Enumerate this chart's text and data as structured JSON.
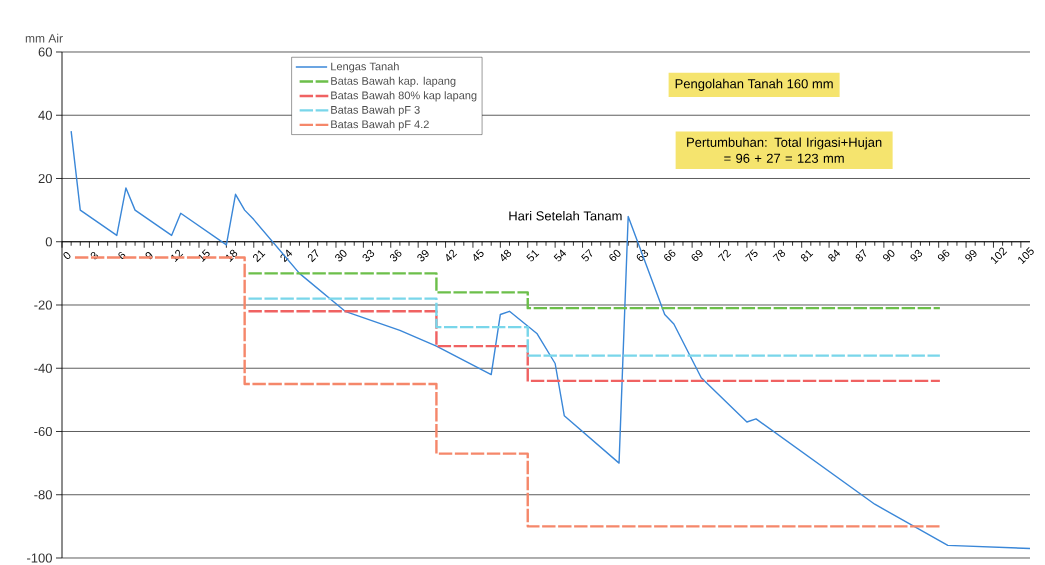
{
  "chart_data": {
    "type": "line",
    "xlabel": "Hari Setelah Tanam",
    "ylabel": "mm Air",
    "xlim": [
      0,
      106
    ],
    "xticks": [
      0,
      3,
      6,
      9,
      12,
      15,
      18,
      21,
      24,
      27,
      30,
      33,
      36,
      39,
      42,
      45,
      48,
      51,
      54,
      57,
      60,
      63,
      66,
      69,
      72,
      75,
      78,
      81,
      84,
      87,
      90,
      93,
      96,
      99,
      102,
      105
    ],
    "ylim": [
      -100,
      60
    ],
    "yticks": [
      -100,
      -80,
      -60,
      -40,
      -20,
      0,
      20,
      40,
      60
    ],
    "grid": "y",
    "legend": "top left",
    "annotations": [
      "Pengolahan Tanah 160 mm",
      "Pertumbuhan: Total Irigasi+Hujan = 96 + 27 = 123 mm"
    ],
    "series": [
      {
        "name": "Lengas Tanah",
        "color": "#3a87d8",
        "line_style": "solid",
        "x": [
          1,
          2,
          6,
          7,
          8,
          12,
          13,
          18,
          19,
          20,
          21,
          26,
          31,
          37,
          41,
          47,
          48,
          49,
          52,
          54,
          55,
          61,
          62,
          66,
          67,
          70,
          75,
          76,
          89,
          97,
          106
        ],
        "values": [
          35,
          10,
          2,
          17,
          10,
          2,
          9,
          -1,
          15,
          10,
          7,
          -10,
          -22,
          -28,
          -33,
          -42,
          -23,
          -22,
          -29,
          -38.5,
          -55,
          -70,
          8,
          -23,
          -26,
          -43,
          -57,
          -56,
          -83,
          -96,
          -97
        ]
      },
      {
        "name": "Batas Bawah kap. lapang",
        "color": "#6cbf4a",
        "line_style": "dashed",
        "x": [
          20,
          41,
          41,
          51,
          51,
          96
        ],
        "values": [
          -10,
          -10,
          -16,
          -16,
          -21,
          -21
        ]
      },
      {
        "name": "Batas Bawah 80% kap lapang",
        "color": "#f06262",
        "line_style": "dashed",
        "x": [
          20,
          41,
          41,
          51,
          51,
          96
        ],
        "values": [
          -22,
          -22,
          -33,
          -33,
          -44,
          -44
        ]
      },
      {
        "name": "Batas Bawah pF 3",
        "color": "#79d6ea",
        "line_style": "dashed",
        "x": [
          20,
          41,
          41,
          51,
          51,
          96
        ],
        "values": [
          -18,
          -18,
          -27,
          -27,
          -36,
          -36
        ]
      },
      {
        "name": "Batas Bawah pF 4.2",
        "color": "#f5876a",
        "line_style": "dashed",
        "x": [
          1,
          20,
          20,
          41,
          41,
          51,
          51,
          96
        ],
        "values": [
          -5,
          -5,
          -45,
          -45,
          -67,
          -67,
          -90,
          -90
        ]
      }
    ]
  }
}
